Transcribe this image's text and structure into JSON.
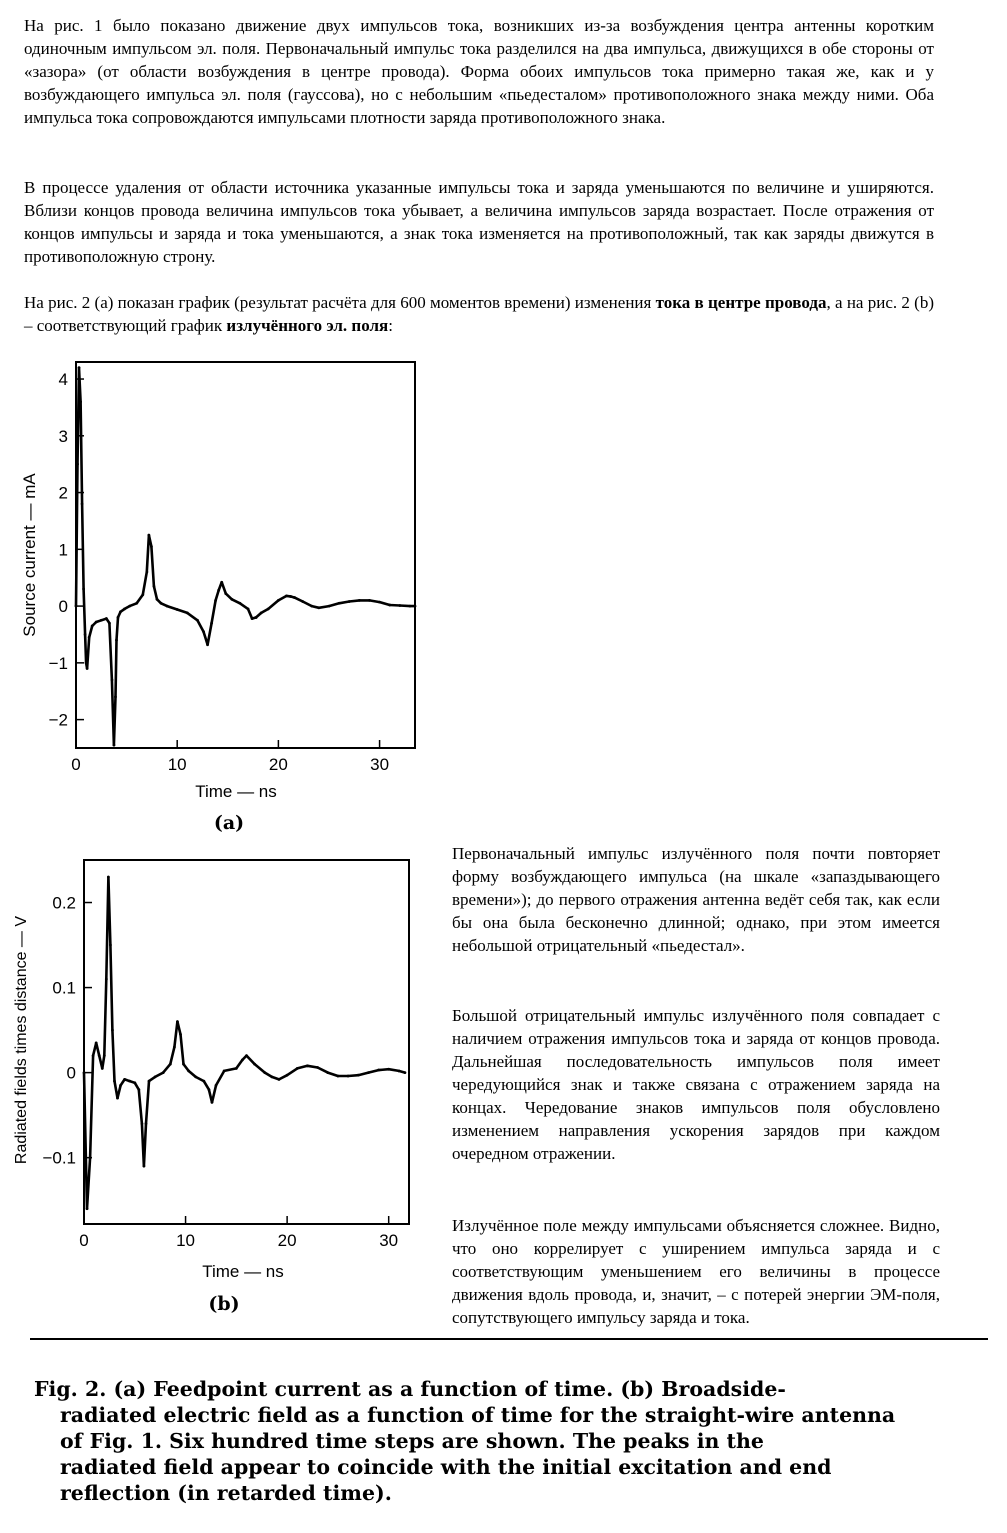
{
  "text": {
    "p1": "На рис. 1 было показано движение двух импульсов тока, возникших из-за возбуждения центра антенны коротким одиночным импульсом эл. поля. Первоначальный импульс тока разделился на два импульса, движущихся в обе стороны от «зазора» (от области возбуждения в центре провода). Форма обоих импульсов тока примерно такая же, как и у возбуждающего импульса эл. поля (гауссова), но с небольшим «пьедесталом» противоположного знака между ними. Оба импульса тока сопровождаются импульсами плотности заряда противоположного знака.",
    "p2": "В процессе удаления от области источника указанные импульсы тока и заряда уменьшаются по величине и уширяются. Вблизи концов провода величина импульсов тока убывает, а величина импульсов заряда возрастает. После отражения от концов импульсы и заряда и тока уменьшаются, а знак тока изменяется на противоположный, так как заряды движутся в противоположную строну.",
    "p3_a": "На рис. 2 (a) показан график (результат расчёта для 600 моментов времени) изменения ",
    "p3_b": "тока в центре провода",
    "p3_c": ", а на рис. 2 (b) – соответствующий график ",
    "p3_d": "излучённого эл. поля",
    "p3_e": ":",
    "side1": "Первоначальный импульс излучённого поля почти повторяет форму возбуждающего импульса (на шкале «запаздывающего времени»); до первого отражения антенна ведёт себя так, как если бы она была бесконечно длинной; однако, при этом имеется небольшой отрицательный «пьедестал».",
    "side2": "Большой отрицательный импульс излучённого поля совпадает с наличием отражения импульсов тока и заряда от концов провода. Дальнейшая последовательность импульсов поля имеет чередующийся знак и также связана с отражением заряда на концах. Чередование знаков импульсов поля обусловлено изменением направления ускорения зарядов при каждом очередном отражении.",
    "side3": "Излучённое поле между импульсами объясняется сложнее. Видно, что оно коррелирует с уширением импульса заряда и с соответствующим уменьшением его величины в процессе движения вдоль провода, и, значит, – с потерей энергии ЭМ-поля, сопутствующего импульсу заряда и тока."
  },
  "caption_lines": [
    "Fig. 2.  (a) Feedpoint current as a function of time.   (b) Broadside-",
    "radiated electric field as a function of time for the straight-wire antenna",
    "of Fig. 1.   Six hundred time steps are shown.  The peaks in the",
    "radiated field appear to coincide with the initial excitation and end",
    "reflection (in retarded time)."
  ],
  "chart_data": [
    {
      "type": "line",
      "panel_label": "(a)",
      "xlabel": "Time — ns",
      "ylabel": "Source current — mA",
      "xlim": [
        0,
        33.5
      ],
      "ylim": [
        -2.5,
        4.3
      ],
      "xticks": [
        0,
        10,
        20,
        30
      ],
      "yticks": [
        4,
        3,
        2,
        1,
        0,
        -1,
        -2
      ],
      "x": [
        0,
        0.15,
        0.3,
        0.45,
        0.6,
        0.75,
        0.9,
        1.0,
        1.1,
        1.3,
        1.6,
        2.0,
        2.5,
        3.0,
        3.3,
        3.55,
        3.75,
        3.9,
        4.0,
        4.15,
        4.4,
        4.8,
        5.3,
        6.0,
        6.6,
        7.0,
        7.2,
        7.45,
        7.7,
        8.0,
        8.4,
        9.0,
        10.0,
        11.0,
        12.0,
        12.6,
        13.0,
        13.4,
        13.8,
        14.1,
        14.4,
        14.8,
        15.4,
        16.2,
        17.0,
        17.4,
        17.8,
        18.3,
        19.0,
        20.0,
        20.8,
        21.2,
        21.6,
        22.4,
        23.3,
        24.0,
        25.0,
        26.0,
        27.0,
        28.0,
        29.0,
        30.0,
        31.0,
        32.0,
        33.0,
        33.5
      ],
      "y": [
        0,
        2.5,
        4.2,
        3.6,
        1.8,
        0.3,
        -0.5,
        -1.0,
        -1.1,
        -0.55,
        -0.35,
        -0.28,
        -0.25,
        -0.22,
        -0.3,
        -1.3,
        -2.45,
        -1.6,
        -0.6,
        -0.2,
        -0.1,
        -0.05,
        0.0,
        0.05,
        0.2,
        0.6,
        1.25,
        1.05,
        0.35,
        0.12,
        0.05,
        0.0,
        -0.06,
        -0.12,
        -0.25,
        -0.45,
        -0.68,
        -0.3,
        0.1,
        0.28,
        0.42,
        0.22,
        0.12,
        0.05,
        -0.05,
        -0.22,
        -0.2,
        -0.12,
        -0.05,
        0.1,
        0.18,
        0.17,
        0.15,
        0.08,
        0.0,
        -0.03,
        0.0,
        0.05,
        0.08,
        0.1,
        0.1,
        0.07,
        0.02,
        0.01,
        0.0,
        0.0
      ]
    },
    {
      "type": "line",
      "panel_label": "(b)",
      "xlabel": "Time — ns",
      "ylabel": "Radiated fields times distance — V",
      "xlim": [
        0,
        32
      ],
      "ylim": [
        -0.178,
        0.25
      ],
      "xticks": [
        0,
        10,
        20,
        30
      ],
      "yticks": [
        0.2,
        0.1,
        0,
        -0.1
      ],
      "x": [
        0,
        0.3,
        0.6,
        0.9,
        1.2,
        1.5,
        1.8,
        2.0,
        2.2,
        2.4,
        2.6,
        2.8,
        3.0,
        3.3,
        3.6,
        4.0,
        4.5,
        5.0,
        5.4,
        5.7,
        5.9,
        6.1,
        6.4,
        7.0,
        7.8,
        8.5,
        8.9,
        9.2,
        9.5,
        9.8,
        10.3,
        11.0,
        11.8,
        12.3,
        12.6,
        13.0,
        13.8,
        15.0,
        15.6,
        16.0,
        16.8,
        17.8,
        18.5,
        19.2,
        20.0,
        21.0,
        22.0,
        23.0,
        24.0,
        25.0,
        26.0,
        27.0,
        28.0,
        29.0,
        30.0,
        31.0,
        31.6
      ],
      "y": [
        0,
        -0.16,
        -0.1,
        0.02,
        0.035,
        0.02,
        0.005,
        0.02,
        0.11,
        0.23,
        0.15,
        0.05,
        -0.01,
        -0.03,
        -0.015,
        -0.008,
        -0.01,
        -0.012,
        -0.02,
        -0.06,
        -0.11,
        -0.06,
        -0.01,
        -0.005,
        0.0,
        0.01,
        0.03,
        0.06,
        0.045,
        0.01,
        0.002,
        -0.005,
        -0.01,
        -0.02,
        -0.035,
        -0.015,
        0.002,
        0.005,
        0.015,
        0.02,
        0.01,
        0.0,
        -0.005,
        -0.008,
        -0.003,
        0.005,
        0.008,
        0.006,
        0.0,
        -0.004,
        -0.004,
        -0.003,
        0.0,
        0.003,
        0.004,
        0.002,
        0.0
      ]
    }
  ]
}
